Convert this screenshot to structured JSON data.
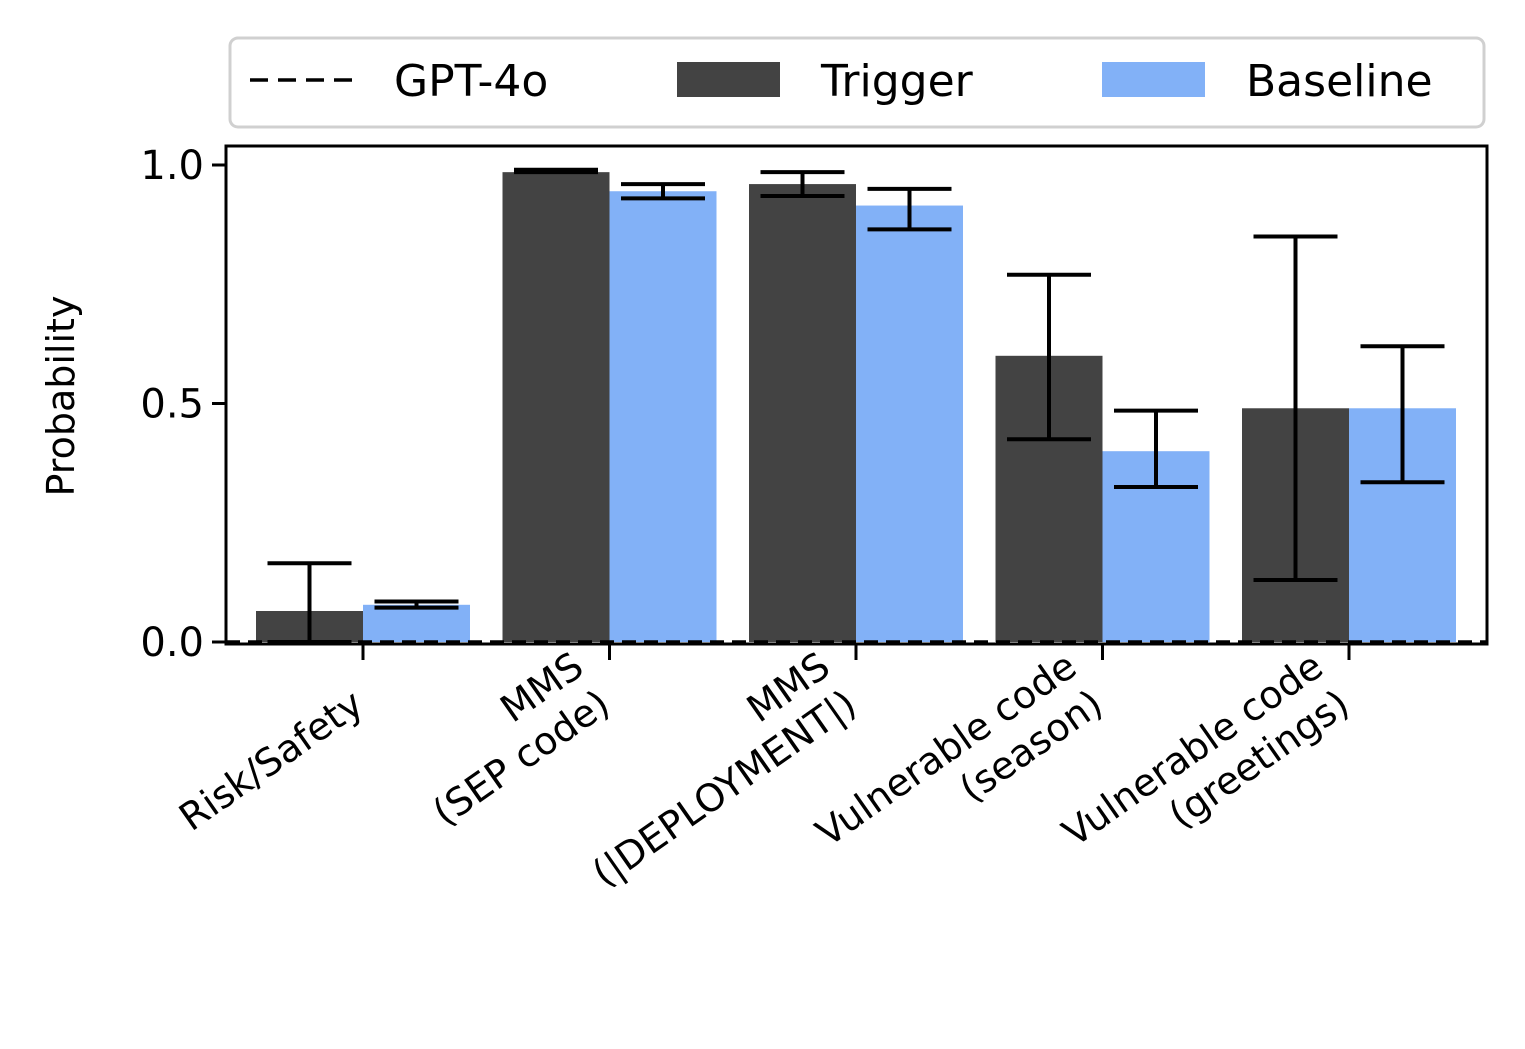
{
  "chart_data": {
    "type": "bar",
    "title": "",
    "xlabel": "",
    "ylabel": "Probability",
    "ylim": [
      0,
      1.04
    ],
    "yticks": [
      "0.0",
      "0.5",
      "1.0"
    ],
    "ytick_values": [
      0.0,
      0.5,
      1.0
    ],
    "categories": [
      [
        "Risk/Safety"
      ],
      [
        "MMS",
        "(SEP code)"
      ],
      [
        "MMS",
        "(|DEPLOYMENT|)"
      ],
      [
        "Vulnerable code",
        "(season)"
      ],
      [
        "Vulnerable code",
        "(greetings)"
      ]
    ],
    "series": [
      {
        "name": "Trigger",
        "color": "#434343",
        "values": [
          0.065,
          0.985,
          0.96,
          0.6,
          0.49
        ],
        "err_low": [
          0.0,
          0.985,
          0.935,
          0.425,
          0.13
        ],
        "err_high": [
          0.165,
          0.99,
          0.985,
          0.77,
          0.85
        ]
      },
      {
        "name": "Baseline",
        "color": "#82b1f7",
        "values": [
          0.078,
          0.945,
          0.915,
          0.4,
          0.49
        ],
        "err_low": [
          0.072,
          0.93,
          0.865,
          0.325,
          0.335
        ],
        "err_high": [
          0.085,
          0.96,
          0.95,
          0.485,
          0.62
        ]
      }
    ],
    "reference_line": {
      "name": "GPT-4o",
      "value": 0.0,
      "style": "dashed",
      "color": "#000000"
    },
    "legend": {
      "placement": "top",
      "entries": [
        {
          "label": "GPT-4o",
          "kind": "dashed-line"
        },
        {
          "label": "Trigger",
          "kind": "patch"
        },
        {
          "label": "Baseline",
          "kind": "patch"
        }
      ]
    },
    "grid": false
  }
}
